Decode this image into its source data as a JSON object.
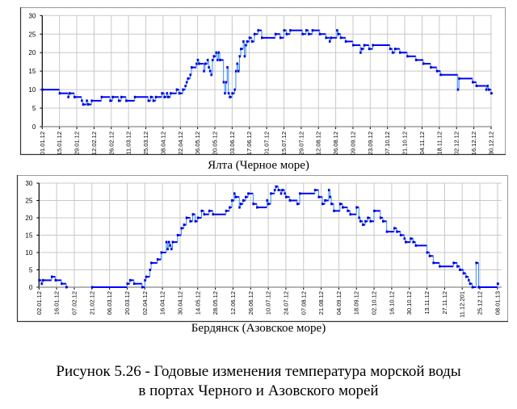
{
  "chart_data": [
    {
      "type": "line",
      "title": "Ялта (Черное море)",
      "xlabel": "",
      "ylabel": "",
      "ylim": [
        0,
        30
      ],
      "yticks": [
        "0",
        "5",
        "10",
        "15",
        "20",
        "25",
        "30"
      ],
      "xticks": [
        "01.01.12",
        "15.01.12",
        "29.01.12",
        "12.02.12",
        "26.02.12",
        "11.03.12",
        "25.03.12",
        "08.04.12",
        "22.04.12",
        "06.05.12",
        "20.05.12",
        "03.06.12",
        "17.06.12",
        "01.07.12",
        "15.07.12",
        "29.07.12",
        "12.08.12",
        "26.08.12",
        "09.09.12",
        "23.09.12",
        "07.10.12",
        "21.10.12",
        "04.11.12",
        "18.11.12",
        "02.12.12",
        "16.12.12",
        "30.12.12"
      ],
      "grid": true,
      "line_style": "step",
      "color": "#0000ff",
      "series": [
        {
          "x": [
            "01.01.12",
            "15.01.12",
            "22.01.12",
            "23.01.12",
            "27.01.12",
            "02.02.12",
            "03.02.12",
            "06.02.12",
            "07.02.12",
            "10.02.12",
            "18.02.12",
            "25.02.12",
            "27.02.12",
            "03.03.12",
            "05.03.12",
            "09.03.12",
            "16.03.12",
            "27.03.12",
            "29.03.12",
            "31.03.12",
            "02.04.12",
            "07.04.12",
            "09.04.12",
            "11.04.12",
            "12.04.12",
            "14.04.12",
            "19.04.12",
            "21.04.12",
            "24.04.12",
            "26.04.12",
            "27.04.12",
            "28.04.12",
            "30.04.12",
            "01.05.12",
            "05.05.12",
            "06.05.12",
            "07.05.12",
            "11.05.12",
            "12.05.12",
            "14.05.12",
            "15.05.12",
            "16.05.12",
            "17.05.12",
            "18.05.12",
            "19.05.12",
            "21.05.12",
            "22.05.12",
            "23.05.12",
            "24.05.12",
            "27.05.12",
            "28.05.12",
            "29.05.12",
            "30.05.12",
            "31.05.12",
            "01.06.12",
            "03.06.12",
            "05.06.12",
            "06.06.12",
            "07.06.12",
            "08.06.12",
            "09.06.12",
            "10.06.12",
            "12.06.12",
            "13.06.12",
            "14.06.12",
            "15.06.12",
            "17.06.12",
            "19.06.12",
            "21.06.12",
            "24.06.12",
            "27.06.12",
            "08.07.12",
            "12.07.12",
            "15.07.12",
            "17.07.12",
            "20.07.12",
            "30.07.12",
            "02.08.12",
            "04.08.12",
            "07.08.12",
            "13.08.12",
            "18.08.12",
            "21.08.12",
            "22.08.12",
            "27.08.12",
            "28.08.12",
            "30.08.12",
            "03.09.12",
            "09.09.12",
            "15.09.12",
            "16.09.12",
            "18.09.12",
            "22.09.12",
            "25.09.12",
            "09.10.12",
            "11.10.12",
            "13.10.12",
            "17.10.12",
            "23.10.12",
            "30.10.12",
            "05.11.12",
            "11.11.12",
            "16.11.12",
            "19.11.12",
            "03.12.12",
            "04.12.12",
            "15.12.12",
            "18.12.12",
            "26.12.12",
            "27.12.12",
            "28.12.12",
            "30.12.12"
          ],
          "y": [
            10,
            9,
            8,
            9,
            8,
            7,
            6,
            7,
            6,
            7,
            8,
            7,
            8,
            7,
            8,
            7,
            8,
            7,
            8,
            7,
            8,
            9,
            8,
            9,
            8,
            9,
            10,
            9,
            10,
            11,
            12,
            13,
            14,
            16,
            17,
            18,
            17,
            15,
            17,
            18,
            16,
            15,
            14,
            18,
            19,
            20,
            18,
            20,
            18,
            12,
            9,
            12,
            16,
            9,
            8,
            9,
            10,
            15,
            17,
            15,
            19,
            21,
            23,
            19,
            22,
            23,
            24,
            23,
            25,
            26,
            24,
            25,
            24,
            26,
            25,
            26,
            25,
            26,
            25,
            26,
            25,
            24,
            23,
            24,
            26,
            25,
            24,
            23,
            22,
            20,
            21,
            22,
            21,
            22,
            21,
            20,
            21,
            20,
            19,
            18,
            17,
            16,
            15,
            14,
            10,
            13,
            12,
            11,
            10,
            11,
            10,
            9
          ]
        }
      ]
    },
    {
      "type": "line",
      "title": "Бердянск (Азовское море)",
      "xlabel": "",
      "ylabel": "",
      "ylim": [
        0,
        30
      ],
      "yticks": [
        "0",
        "5",
        "10",
        "15",
        "20",
        "25",
        "30"
      ],
      "xticks": [
        "02.01.12",
        "16.01.12",
        "07.02.12",
        "21.02.12",
        "06.03.12",
        "20.03.12",
        "02.04.12",
        "16.04.12",
        "30.04.12",
        "14.05.12",
        "28.05.12",
        "12.06.12",
        "26.06.12",
        "10.07.12",
        "24.07.12",
        "07.08.12",
        "21.08.12",
        "04.09.12",
        "18.09.12",
        "02.10.12",
        "16.10.12",
        "30.10.12",
        "13.11.12",
        "27.11.12",
        "11.12.201",
        "25.12.12",
        "08.01.13"
      ],
      "grid": true,
      "line_style": "step",
      "color": "#0000ff",
      "series": [
        {
          "x": [
            "02.01.12",
            "04.01.12",
            "05.01.12",
            "12.01.12",
            "15.01.12",
            "22.01.12",
            "28.01.12",
            "30.01.12",
            "21.02.12",
            "20.03.12",
            "22.03.12",
            "25.03.12",
            "31.03.12",
            "02.04.12",
            "03.04.12",
            "06.04.12",
            "07.04.12",
            "12.04.12",
            "15.04.12",
            "19.04.12",
            "20.04.12",
            "21.04.12",
            "22.04.12",
            "23.04.12",
            "24.04.12",
            "28.04.12",
            "01.05.12",
            "03.05.12",
            "05.05.12",
            "08.05.12",
            "10.05.12",
            "12.05.12",
            "14.05.12",
            "17.05.12",
            "19.05.12",
            "23.05.12",
            "26.05.12",
            "06.06.12",
            "09.06.12",
            "11.06.12",
            "13.06.12",
            "14.06.12",
            "17.06.12",
            "18.06.12",
            "20.06.12",
            "22.06.12",
            "24.06.12",
            "28.06.12",
            "01.07.12",
            "09.07.12",
            "10.07.12",
            "12.07.12",
            "15.07.12",
            "16.07.12",
            "18.07.12",
            "20.07.12",
            "21.07.12",
            "23.07.12",
            "24.07.12",
            "27.07.12",
            "02.08.12",
            "04.08.12",
            "16.08.12",
            "19.08.12",
            "22.08.12",
            "24.08.12",
            "27.08.12",
            "28.08.12",
            "29.08.12",
            "31.08.12",
            "05.09.12",
            "07.09.12",
            "11.09.12",
            "13.09.12",
            "18.09.12",
            "20.09.12",
            "21.09.12",
            "23.09.12",
            "25.09.12",
            "27.09.12",
            "29.09.12",
            "02.10.12",
            "07.10.12",
            "09.10.12",
            "12.10.12",
            "18.10.12",
            "20.10.12",
            "23.10.12",
            "26.10.12",
            "27.10.12",
            "31.10.12",
            "02.11.12",
            "04.11.12",
            "13.11.12",
            "15.11.12",
            "18.11.12",
            "23.11.12",
            "04.12.12",
            "07.12.12",
            "09.12.12",
            "12.12.12",
            "14.12.12",
            "16.12.12",
            "17.12.12",
            "19.12.12",
            "22.12.12",
            "24.12.12",
            "08.01.13"
          ],
          "y": [
            2,
            1,
            2,
            3,
            2,
            1,
            0,
            null,
            0,
            1,
            2,
            1,
            0,
            2,
            3,
            5,
            7,
            8,
            10,
            13,
            11,
            13,
            12,
            11,
            13,
            15,
            17,
            18,
            20,
            19,
            21,
            19,
            20,
            22,
            21,
            22,
            21,
            22,
            23,
            25,
            27,
            26,
            23,
            24,
            25,
            26,
            27,
            24,
            23,
            25,
            24,
            27,
            28,
            29,
            28,
            27,
            28,
            27,
            26,
            25,
            24,
            27,
            28,
            26,
            24,
            25,
            28,
            26,
            24,
            22,
            24,
            23,
            22,
            21,
            23,
            20,
            19,
            18,
            19,
            20,
            19,
            22,
            20,
            19,
            16,
            17,
            16,
            15,
            14,
            13,
            14,
            13,
            12,
            10,
            9,
            7,
            6,
            7,
            6,
            5,
            4,
            3,
            2,
            1,
            0,
            7,
            0,
            1
          ]
        }
      ]
    }
  ],
  "captions": {
    "top": "Ялта (Черное море)",
    "bottom": "Бердянск (Азовское море)",
    "figure_line1": "Рисунок 5.26 - Годовые изменения температура морской воды",
    "figure_line2": "в портах Черного и Азовского морей"
  }
}
